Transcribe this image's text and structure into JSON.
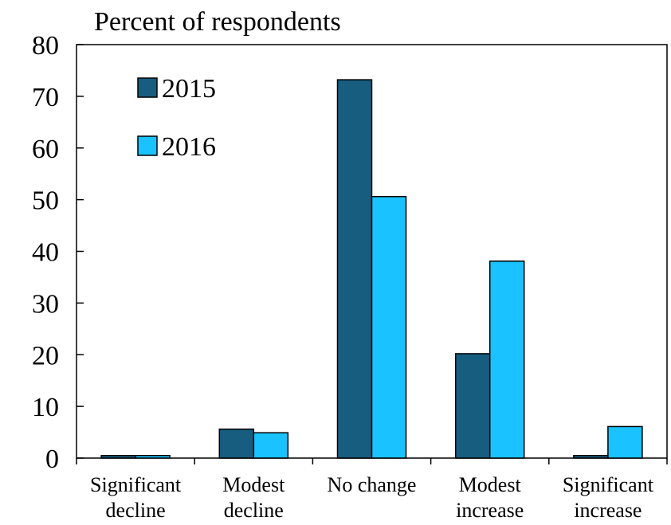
{
  "chart_data": {
    "type": "bar",
    "title": "Percent of respondents",
    "categories": [
      [
        "Significant",
        "decline"
      ],
      [
        "Modest",
        "decline"
      ],
      [
        "No change"
      ],
      [
        "Modest",
        "increase"
      ],
      [
        "Significant",
        "increase"
      ]
    ],
    "series": [
      {
        "name": "2015",
        "color": "#175d80",
        "values": [
          0.5,
          5.6,
          73.2,
          20.2,
          0.5
        ]
      },
      {
        "name": "2016",
        "color": "#1ac3ff",
        "values": [
          0.5,
          4.9,
          50.6,
          38.1,
          6.1
        ]
      }
    ],
    "ylim": [
      0,
      80
    ],
    "yticks": [
      0,
      10,
      20,
      30,
      40,
      50,
      60,
      70,
      80
    ],
    "legend_position": "top-left inside plot",
    "grid": false
  }
}
